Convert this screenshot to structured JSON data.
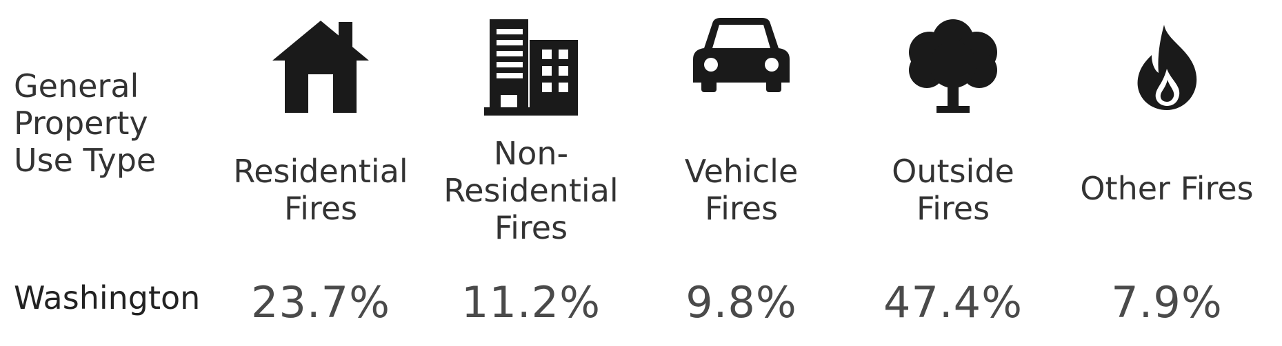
{
  "chart_data": {
    "type": "table",
    "row_header": "General\nProperty\nUse Type",
    "categories": [
      {
        "label": "Residential\nFires",
        "icon": "house-icon"
      },
      {
        "label": "Non-\nResidential\nFires",
        "icon": "building-icon"
      },
      {
        "label": "Vehicle\nFires",
        "icon": "car-icon"
      },
      {
        "label": "Outside\nFires",
        "icon": "tree-icon"
      },
      {
        "label": "Other Fires",
        "icon": "flame-icon"
      }
    ],
    "series": [
      {
        "name": "Washington",
        "values": [
          "23.7%",
          "11.2%",
          "9.8%",
          "47.4%",
          "7.9%"
        ]
      }
    ],
    "colors": {
      "icon": "#1a1a1a",
      "text": "#333333",
      "value": "#4a4a4a"
    }
  }
}
